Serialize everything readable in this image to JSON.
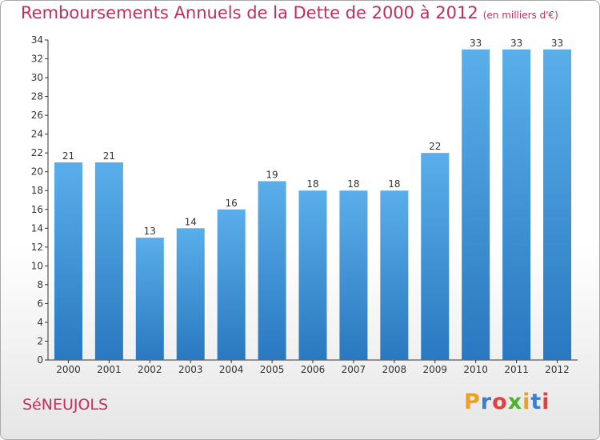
{
  "title": "Remboursements Annuels de la Dette de 2000 à 2012",
  "subtitle": "(en milliers d'€)",
  "commune": "SéNEUJOLS",
  "logo": {
    "letters": [
      "P",
      "r",
      "o",
      "x",
      "i",
      "t",
      "i"
    ],
    "colors": [
      "#f0a020",
      "#3a7fd0",
      "#e04040",
      "#50b030",
      "#f0a020",
      "#3a7fd0",
      "#e04040"
    ]
  },
  "chart_data": {
    "type": "bar",
    "categories": [
      "2000",
      "2001",
      "2002",
      "2003",
      "2004",
      "2005",
      "2006",
      "2007",
      "2008",
      "2009",
      "2010",
      "2011",
      "2012"
    ],
    "values": [
      21,
      21,
      13,
      14,
      16,
      19,
      18,
      18,
      18,
      22,
      33,
      33,
      33
    ],
    "data_labels": [
      "21",
      "21",
      "13",
      "14",
      "16",
      "19",
      "18",
      "18",
      "18",
      "22",
      "33",
      "33",
      "33"
    ],
    "ylim": [
      0,
      34
    ],
    "yticks": [
      0,
      2,
      4,
      6,
      8,
      10,
      12,
      14,
      16,
      18,
      20,
      22,
      24,
      26,
      28,
      30,
      32,
      34
    ],
    "grid": false,
    "bar_color": "#3a8fd8"
  }
}
